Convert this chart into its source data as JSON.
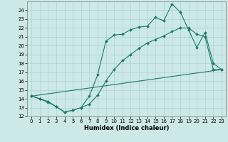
{
  "title": "",
  "xlabel": "Humidex (Indice chaleur)",
  "background_color": "#cce8e8",
  "grid_color": "#aacccc",
  "line_color": "#1a7a6a",
  "xlim": [
    -0.5,
    23.5
  ],
  "ylim": [
    12,
    25
  ],
  "yticks": [
    12,
    13,
    14,
    15,
    16,
    17,
    18,
    19,
    20,
    21,
    22,
    23,
    24
  ],
  "xticks": [
    0,
    1,
    2,
    3,
    4,
    5,
    6,
    7,
    8,
    9,
    10,
    11,
    12,
    13,
    14,
    15,
    16,
    17,
    18,
    19,
    20,
    21,
    22,
    23
  ],
  "series1_x": [
    0,
    1,
    2,
    3,
    4,
    5,
    6,
    7,
    8,
    9,
    10,
    11,
    12,
    13,
    14,
    15,
    16,
    17,
    18,
    19,
    20,
    21,
    22,
    23
  ],
  "series1_y": [
    14.3,
    14.0,
    13.7,
    13.1,
    12.5,
    12.7,
    13.0,
    14.3,
    16.7,
    20.5,
    21.2,
    21.3,
    21.8,
    22.1,
    22.2,
    23.2,
    22.8,
    24.7,
    23.8,
    21.8,
    19.8,
    21.5,
    18.0,
    17.3
  ],
  "series2_x": [
    0,
    1,
    2,
    3,
    4,
    5,
    6,
    7,
    8,
    9,
    10,
    11,
    12,
    13,
    14,
    15,
    16,
    17,
    18,
    19,
    20,
    21,
    22,
    23
  ],
  "series2_y": [
    14.3,
    14.0,
    13.6,
    13.1,
    12.5,
    12.7,
    13.0,
    13.4,
    14.4,
    16.0,
    17.3,
    18.3,
    19.0,
    19.7,
    20.3,
    20.7,
    21.1,
    21.6,
    22.0,
    22.0,
    21.3,
    21.0,
    17.3,
    17.3
  ],
  "series3_x": [
    0,
    23
  ],
  "series3_y": [
    14.3,
    17.3
  ],
  "marker": "D",
  "markersize": 2.0,
  "linewidth": 0.8,
  "xlabel_fontsize": 6.0,
  "tick_fontsize": 5.0
}
